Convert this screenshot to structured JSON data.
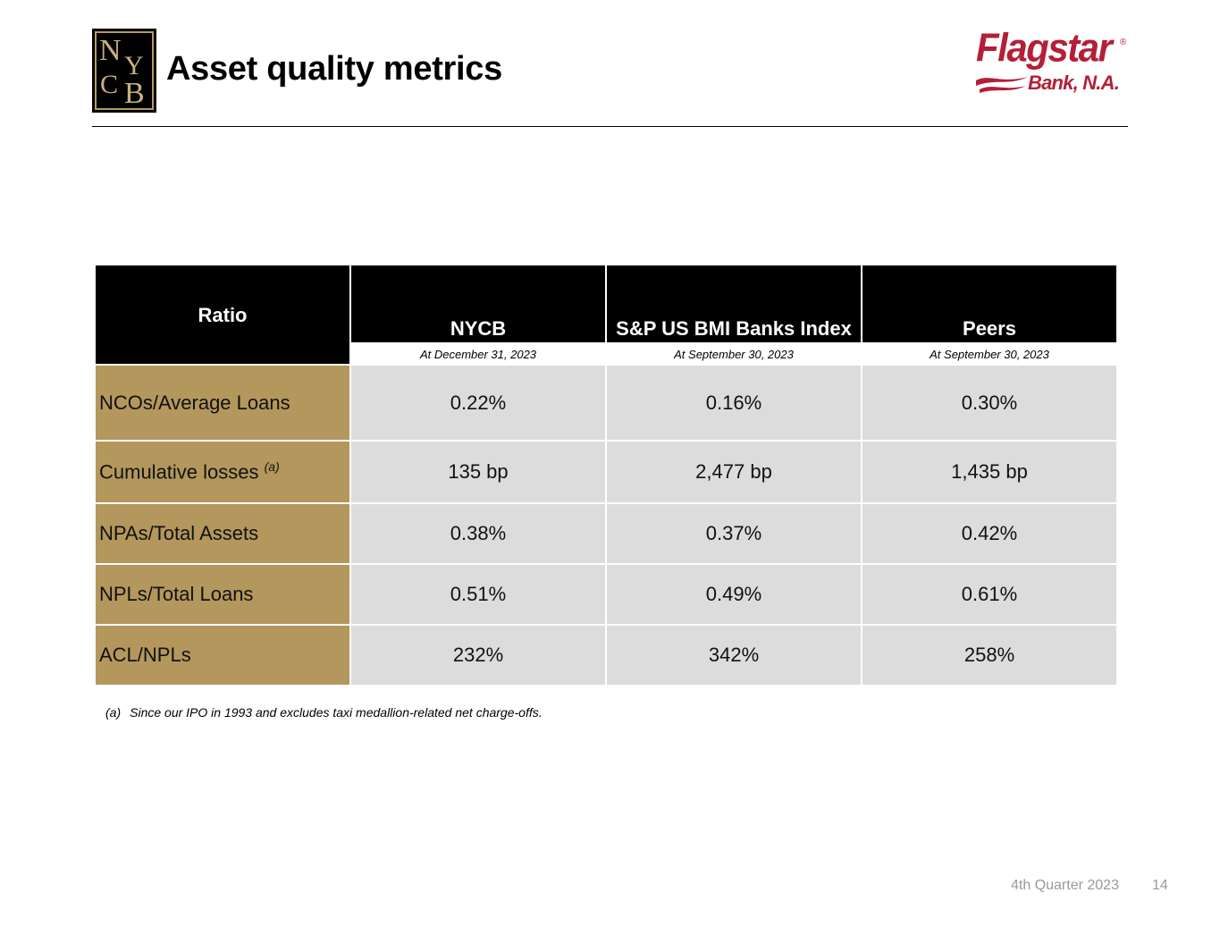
{
  "header": {
    "title": "Asset quality metrics",
    "left_logo": {
      "icon": "nycb-monogram-logo",
      "letters": [
        "N",
        "Y",
        "C",
        "B"
      ]
    },
    "right_logo": {
      "icon": "flagstar-bank-logo",
      "name": "Flagstar",
      "registered": "®",
      "subtitle": "Bank, N.A."
    }
  },
  "table": {
    "columns": [
      {
        "label": "Ratio",
        "date": ""
      },
      {
        "label": "NYCB",
        "date": "At December 31, 2023"
      },
      {
        "label": "S&P US BMI Banks Index",
        "date": "At September 30, 2023"
      },
      {
        "label": "Peers",
        "date": "At September 30, 2023"
      }
    ],
    "rows": [
      {
        "label": "NCOs/Average Loans",
        "note": "",
        "values": [
          "0.22%",
          "0.16%",
          "0.30%"
        ]
      },
      {
        "label": "Cumulative losses",
        "note": "(a)",
        "values": [
          "135 bp",
          "2,477 bp",
          "1,435 bp"
        ]
      },
      {
        "label": "NPAs/Total Assets",
        "note": "",
        "values": [
          "0.38%",
          "0.37%",
          "0.42%"
        ]
      },
      {
        "label": "NPLs/Total Loans",
        "note": "",
        "values": [
          "0.51%",
          "0.49%",
          "0.61%"
        ]
      },
      {
        "label": "ACL/NPLs",
        "note": "",
        "values": [
          "232%",
          "342%",
          "258%"
        ]
      }
    ]
  },
  "footnote": {
    "marker": "(a)",
    "text": "Since our IPO in 1993 and excludes taxi medallion-related net charge-offs."
  },
  "footer": {
    "quarter": "4th Quarter 2023",
    "page": "14"
  },
  "colors": {
    "label_bg": "#b3975c",
    "value_bg": "#dcdcdc",
    "header_bg": "#000000",
    "brand_red": "#b41f37"
  }
}
